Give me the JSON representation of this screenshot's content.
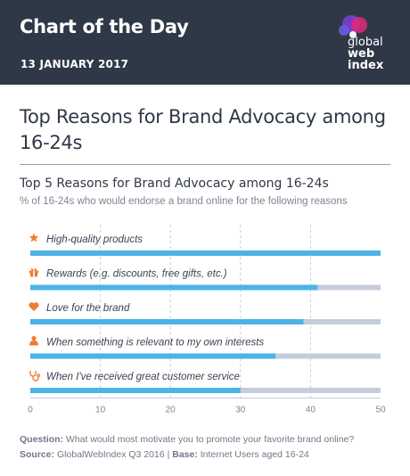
{
  "header": {
    "title": "Chart of the Day",
    "date": "13 JANUARY 2017",
    "logo": {
      "line1": "global",
      "line2": "web",
      "line3": "index"
    }
  },
  "page_title": "Top Reasons for Brand Advocacy among 16-24s",
  "footer": {
    "question_label": "Question:",
    "question": "What would most motivate you to promote your favorite brand online?",
    "source_label": "Source:",
    "source": "GlobalWebIndex Q3 2016",
    "separator": "|",
    "base_label": "Base:",
    "base": "Internet Users aged 16-24"
  },
  "colors": {
    "header_bg": "#2f3846",
    "bar": "#4db3e6",
    "track": "#c5ccdb",
    "icon": "#f07c2e",
    "grid": "#c5ccdb"
  },
  "chart_data": {
    "type": "bar",
    "orientation": "horizontal",
    "title": "Top 5 Reasons for Brand Advocacy among 16-24s",
    "subtitle": "% of 16-24s who would endorse a brand online for the following reasons",
    "categories": [
      "High-quality products",
      "Rewards (e.g. discounts, free gifts, etc.)",
      "Love for the brand",
      "When something is relevant to my own interests",
      "When I've received great customer service"
    ],
    "icons": [
      "star-icon",
      "gift-icon",
      "heart-icon",
      "person-icon",
      "stethoscope-icon"
    ],
    "values": [
      50,
      41,
      39,
      35,
      30
    ],
    "xlim": [
      0,
      50
    ],
    "xticks": [
      0,
      10,
      20,
      30,
      40,
      50
    ],
    "grid": true
  }
}
